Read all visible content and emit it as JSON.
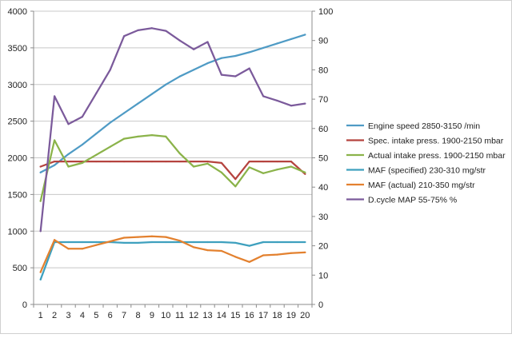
{
  "colors": {
    "gridline": "#c8c8c8",
    "axis": "#8c8c8c",
    "border": "#d0d0d0"
  },
  "chart_data": {
    "type": "line",
    "title": "",
    "xlabel": "",
    "ylabel": "",
    "y2label": "",
    "x": [
      1,
      2,
      3,
      4,
      5,
      6,
      7,
      8,
      9,
      10,
      11,
      12,
      13,
      14,
      15,
      16,
      17,
      18,
      19,
      20
    ],
    "x_tick_labels": [
      "1",
      "2",
      "3",
      "4",
      "5",
      "6",
      "7",
      "8",
      "9",
      "10",
      "11",
      "12",
      "13",
      "14",
      "15",
      "16",
      "17",
      "18",
      "19",
      "20"
    ],
    "ylim": [
      0,
      4000
    ],
    "y_ticks": [
      0,
      500,
      1000,
      1500,
      2000,
      2500,
      3000,
      3500,
      4000
    ],
    "y2lim": [
      0,
      100
    ],
    "y2_ticks": [
      0,
      10,
      20,
      30,
      40,
      50,
      60,
      70,
      80,
      90,
      100
    ],
    "grid": true,
    "legend_position": "right",
    "series": [
      {
        "name": "Engine speed 2850-3150  /min",
        "axis": "left",
        "color": "#4f9bc5",
        "values": [
          1800,
          1900,
          2050,
          2180,
          2330,
          2480,
          2610,
          2740,
          2870,
          3000,
          3110,
          3200,
          3290,
          3360,
          3390,
          3440,
          3500,
          3560,
          3620,
          3680
        ]
      },
      {
        "name": "Spec. intake press. 1900-2150  mbar",
        "axis": "left",
        "color": "#b5433f",
        "values": [
          1880,
          1950,
          1950,
          1950,
          1950,
          1950,
          1950,
          1950,
          1950,
          1950,
          1950,
          1950,
          1950,
          1930,
          1710,
          1950,
          1950,
          1950,
          1950,
          1780
        ]
      },
      {
        "name": "Actual intake press. 1900-2150  mbar",
        "axis": "left",
        "color": "#8bb34a",
        "values": [
          1410,
          2240,
          1880,
          1930,
          2040,
          2150,
          2260,
          2290,
          2310,
          2290,
          2060,
          1880,
          1920,
          1800,
          1610,
          1870,
          1790,
          1840,
          1880,
          1800
        ]
      },
      {
        "name": "MAF (specified) 230-310  mg/str",
        "axis": "left",
        "color": "#3ea0be",
        "values": [
          340,
          850,
          850,
          850,
          850,
          850,
          840,
          840,
          850,
          850,
          850,
          850,
          850,
          850,
          840,
          800,
          850,
          850,
          850,
          850
        ]
      },
      {
        "name": "MAF (actual)  210-350  mg/str",
        "axis": "left",
        "color": "#e3812f",
        "values": [
          440,
          880,
          760,
          760,
          810,
          860,
          910,
          920,
          930,
          920,
          870,
          780,
          740,
          730,
          650,
          580,
          670,
          680,
          700,
          710
        ]
      },
      {
        "name": "D.cycle MAP 55-75% %",
        "axis": "right",
        "color": "#7b5a9b",
        "values": [
          25,
          71,
          61.5,
          64,
          72,
          80,
          91.5,
          93.5,
          94.2,
          93.3,
          90,
          87,
          89.5,
          78.3,
          77.8,
          80.5,
          71,
          69.5,
          67.8,
          68.5
        ]
      }
    ]
  }
}
